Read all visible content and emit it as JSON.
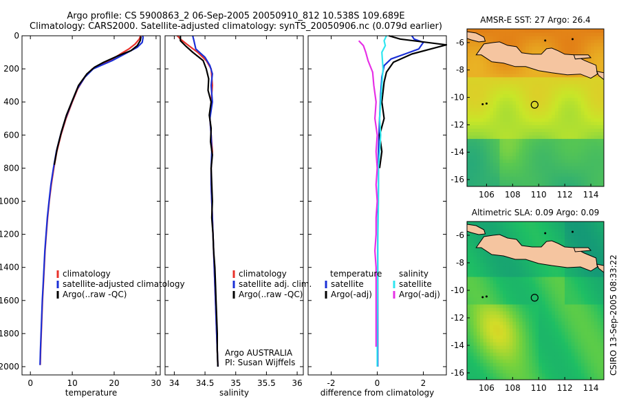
{
  "header": {
    "line1": "Argo profile: CS 5900863_2 06-Sep-2005 20050910_812 10.538S 109.689E",
    "line2": "Climatology: CARS2000. Satellite-adjusted climatology: synTS_20050906.nc (0.079d earlier)"
  },
  "side_stamp": "CSIRO 13-Sep-2005 08:33:22",
  "colors": {
    "climatology": "#e8312a",
    "satellite": "#1a2fd6",
    "argo": "#000000",
    "satellite_diff_sal": "#2fe6f0",
    "argo_diff_sal": "#e630e6",
    "land": "#f5c5a0"
  },
  "chart_data": [
    {
      "type": "line",
      "title": "",
      "xlabel": "temperature",
      "ylabel": "",
      "xlim": [
        -2,
        31
      ],
      "ylim": [
        2050,
        0
      ],
      "xticks": [
        0,
        10,
        20,
        30
      ],
      "yticks": [
        0,
        200,
        400,
        600,
        800,
        1000,
        1200,
        1400,
        1600,
        1800,
        2000
      ],
      "legend": {
        "placement": "bottom-right",
        "entries": [
          "climatology",
          "satellite-adjusted climatology",
          "Argo(..raw -QC)"
        ]
      },
      "series": [
        {
          "name": "climatology",
          "color": "#e8312a",
          "points": [
            [
              26.3,
              0
            ],
            [
              26.0,
              20
            ],
            [
              25.0,
              50
            ],
            [
              23.5,
              80
            ],
            [
              21.5,
              110
            ],
            [
              19.0,
              150
            ],
            [
              16.5,
              180
            ],
            [
              14.8,
              200
            ],
            [
              13.0,
              250
            ],
            [
              11.3,
              320
            ],
            [
              10.0,
              400
            ],
            [
              8.5,
              500
            ],
            [
              7.3,
              600
            ],
            [
              6.3,
              700
            ],
            [
              5.6,
              800
            ],
            [
              5.0,
              900
            ],
            [
              4.5,
              1000
            ],
            [
              4.1,
              1100
            ],
            [
              3.8,
              1200
            ],
            [
              3.5,
              1300
            ],
            [
              3.3,
              1400
            ],
            [
              3.1,
              1500
            ],
            [
              2.9,
              1600
            ],
            [
              2.75,
              1700
            ],
            [
              2.6,
              1800
            ],
            [
              2.45,
              1900
            ],
            [
              2.35,
              1990
            ]
          ]
        },
        {
          "name": "satellite-adjusted climatology",
          "color": "#1a2fd6",
          "points": [
            [
              26.8,
              0
            ],
            [
              26.9,
              10
            ],
            [
              26.7,
              40
            ],
            [
              25.5,
              70
            ],
            [
              22.5,
              110
            ],
            [
              19.5,
              150
            ],
            [
              16.8,
              180
            ],
            [
              15.0,
              200
            ],
            [
              13.0,
              250
            ],
            [
              11.2,
              320
            ],
            [
              9.9,
              400
            ],
            [
              8.4,
              500
            ],
            [
              7.2,
              600
            ],
            [
              6.2,
              700
            ],
            [
              5.5,
              800
            ],
            [
              4.9,
              900
            ],
            [
              4.45,
              1000
            ],
            [
              4.05,
              1100
            ],
            [
              3.75,
              1200
            ],
            [
              3.45,
              1300
            ],
            [
              3.25,
              1400
            ],
            [
              3.05,
              1500
            ],
            [
              2.85,
              1600
            ],
            [
              2.7,
              1700
            ],
            [
              2.55,
              1800
            ],
            [
              2.4,
              1900
            ],
            [
              2.3,
              1990
            ]
          ]
        },
        {
          "name": "Argo(..raw -QC)",
          "color": "#000000",
          "points": [
            [
              26.4,
              5
            ],
            [
              26.2,
              30
            ],
            [
              25.5,
              60
            ],
            [
              24.0,
              90
            ],
            [
              21.0,
              120
            ],
            [
              17.5,
              160
            ],
            [
              15.3,
              190
            ],
            [
              13.5,
              230
            ],
            [
              11.5,
              300
            ],
            [
              10.2,
              380
            ],
            [
              8.6,
              480
            ],
            [
              7.4,
              580
            ],
            [
              6.4,
              680
            ],
            [
              5.7,
              780
            ]
          ]
        }
      ]
    },
    {
      "type": "line",
      "title": "",
      "xlabel": "salinity",
      "ylabel": "",
      "xlim": [
        33.85,
        36.1
      ],
      "ylim": [
        2050,
        0
      ],
      "xticks": [
        34,
        34.5,
        35,
        35.5,
        36
      ],
      "legend": {
        "placement": "bottom-right",
        "entries": [
          "climatology",
          "satellite adj. clim.",
          "Argo(..raw -QC)"
        ]
      },
      "annotations": [
        "Argo AUSTRALIA",
        "PI: Susan Wijffels"
      ],
      "series": [
        {
          "name": "climatology",
          "color": "#e8312a",
          "points": [
            [
              34.05,
              0
            ],
            [
              34.1,
              20
            ],
            [
              34.2,
              50
            ],
            [
              34.38,
              100
            ],
            [
              34.52,
              150
            ],
            [
              34.6,
              200
            ],
            [
              34.62,
              300
            ],
            [
              34.6,
              400
            ],
            [
              34.58,
              500
            ],
            [
              34.6,
              600
            ],
            [
              34.62,
              700
            ],
            [
              34.6,
              800
            ],
            [
              34.6,
              900
            ],
            [
              34.61,
              1000
            ],
            [
              34.62,
              1100
            ],
            [
              34.63,
              1200
            ],
            [
              34.64,
              1300
            ],
            [
              34.65,
              1400
            ],
            [
              34.66,
              1500
            ],
            [
              34.67,
              1600
            ],
            [
              34.68,
              1700
            ],
            [
              34.69,
              1800
            ],
            [
              34.7,
              1900
            ],
            [
              34.71,
              2000
            ]
          ]
        },
        {
          "name": "satellite adj. clim.",
          "color": "#1a2fd6",
          "points": [
            [
              34.3,
              0
            ],
            [
              34.32,
              30
            ],
            [
              34.35,
              80
            ],
            [
              34.5,
              130
            ],
            [
              34.58,
              180
            ],
            [
              34.62,
              230
            ],
            [
              34.6,
              300
            ],
            [
              34.62,
              400
            ],
            [
              34.58,
              500
            ],
            [
              34.6,
              600
            ],
            [
              34.61,
              700
            ],
            [
              34.6,
              800
            ],
            [
              34.6,
              900
            ],
            [
              34.61,
              1000
            ],
            [
              34.62,
              1100
            ],
            [
              34.63,
              1200
            ],
            [
              34.64,
              1300
            ],
            [
              34.65,
              1400
            ],
            [
              34.66,
              1500
            ],
            [
              34.67,
              1600
            ],
            [
              34.68,
              1700
            ],
            [
              34.69,
              1800
            ],
            [
              34.7,
              1900
            ],
            [
              34.71,
              2000
            ]
          ]
        },
        {
          "name": "Argo(..raw -QC)",
          "color": "#000000",
          "points": [
            [
              34.1,
              0
            ],
            [
              34.1,
              30
            ],
            [
              34.18,
              60
            ],
            [
              34.3,
              100
            ],
            [
              34.47,
              150
            ],
            [
              34.52,
              200
            ],
            [
              34.56,
              260
            ],
            [
              34.55,
              330
            ],
            [
              34.6,
              400
            ],
            [
              34.57,
              480
            ],
            [
              34.6,
              560
            ],
            [
              34.59,
              640
            ],
            [
              34.62,
              720
            ],
            [
              34.6,
              800
            ],
            [
              34.61,
              900
            ],
            [
              34.62,
              1000
            ],
            [
              34.61,
              1100
            ],
            [
              34.63,
              1200
            ],
            [
              34.64,
              1300
            ],
            [
              34.66,
              1400
            ],
            [
              34.67,
              1500
            ],
            [
              34.68,
              1600
            ],
            [
              34.69,
              1700
            ],
            [
              34.7,
              1800
            ],
            [
              34.7,
              1900
            ],
            [
              34.71,
              2000
            ]
          ]
        }
      ]
    },
    {
      "type": "line",
      "title": "",
      "xlabel": "difference from climatology",
      "ylabel": "",
      "xlim": [
        -3,
        3
      ],
      "ylim": [
        2050,
        0
      ],
      "xticks": [
        -2,
        0,
        2
      ],
      "legend": {
        "placement": "bottom-right",
        "temperature_heading": "temperature",
        "salinity_heading": "salinity",
        "entries": [
          "satellite",
          "Argo(-adj)",
          "satellite",
          "Argo(-adj)"
        ]
      },
      "series": [
        {
          "name": "satellite",
          "group": "temperature",
          "color": "#1a2fd6",
          "points": [
            [
              1.5,
              0
            ],
            [
              1.6,
              20
            ],
            [
              2.0,
              40
            ],
            [
              1.8,
              80
            ],
            [
              1.2,
              110
            ],
            [
              0.6,
              140
            ],
            [
              0.3,
              180
            ],
            [
              0.2,
              250
            ],
            [
              0.15,
              350
            ],
            [
              0.1,
              500
            ],
            [
              0.05,
              700
            ],
            [
              0.05,
              900
            ],
            [
              0.03,
              1100
            ],
            [
              0.02,
              1300
            ],
            [
              0.02,
              1500
            ],
            [
              0.02,
              1700
            ],
            [
              0.02,
              1900
            ],
            [
              0.02,
              2000
            ]
          ]
        },
        {
          "name": "Argo(-adj)",
          "group": "temperature",
          "color": "#000000",
          "points": [
            [
              0.5,
              0
            ],
            [
              1.0,
              20
            ],
            [
              3.0,
              55
            ],
            [
              1.5,
              110
            ],
            [
              0.7,
              160
            ],
            [
              0.4,
              220
            ],
            [
              0.3,
              280
            ],
            [
              0.2,
              400
            ],
            [
              0.3,
              500
            ],
            [
              0.1,
              600
            ],
            [
              0.2,
              700
            ],
            [
              0.1,
              800
            ]
          ]
        },
        {
          "name": "satellite",
          "group": "salinity",
          "color": "#2fe6f0",
          "points": [
            [
              0.4,
              0
            ],
            [
              0.3,
              30
            ],
            [
              0.35,
              60
            ],
            [
              0.2,
              100
            ],
            [
              0.25,
              200
            ],
            [
              0.2,
              300
            ],
            [
              0.15,
              400
            ],
            [
              0.1,
              500
            ],
            [
              0.15,
              600
            ],
            [
              0.1,
              700
            ],
            [
              0.05,
              800
            ],
            [
              0.05,
              1000
            ],
            [
              0.03,
              1200
            ],
            [
              0.02,
              1400
            ],
            [
              0.01,
              1600
            ],
            [
              0.0,
              1800
            ],
            [
              0.0,
              2000
            ]
          ]
        },
        {
          "name": "Argo(-adj)",
          "group": "salinity",
          "color": "#e630e6",
          "points": [
            [
              -0.8,
              30
            ],
            [
              -0.6,
              60
            ],
            [
              -0.5,
              100
            ],
            [
              -0.4,
              150
            ],
            [
              -0.2,
              220
            ],
            [
              -0.15,
              300
            ],
            [
              -0.05,
              400
            ],
            [
              -0.1,
              500
            ],
            [
              0.0,
              600
            ],
            [
              -0.05,
              700
            ],
            [
              0.0,
              800
            ],
            [
              -0.05,
              900
            ],
            [
              0.0,
              1000
            ],
            [
              -0.05,
              1100
            ],
            [
              -0.05,
              1200
            ],
            [
              -0.1,
              1300
            ],
            [
              -0.05,
              1400
            ],
            [
              -0.05,
              1500
            ],
            [
              -0.05,
              1600
            ],
            [
              -0.05,
              1700
            ],
            [
              -0.05,
              1800
            ],
            [
              -0.05,
              1880
            ]
          ]
        }
      ]
    },
    {
      "type": "heatmap",
      "title": "AMSR-E SST: 27 Argo: 26.4",
      "xlim": [
        104.5,
        115
      ],
      "ylim": [
        -16.5,
        -5
      ],
      "xticks": [
        106,
        108,
        110,
        112,
        114
      ],
      "yticks": [
        -6,
        -8,
        -10,
        -12,
        -14,
        -16
      ],
      "marker": {
        "lon": 109.689,
        "lat": -10.538
      },
      "field": "sst"
    },
    {
      "type": "heatmap",
      "title": "Altimetric SLA: 0.09 Argo: 0.09",
      "xlim": [
        104.5,
        115
      ],
      "ylim": [
        -16.5,
        -5
      ],
      "xticks": [
        106,
        108,
        110,
        112,
        114
      ],
      "yticks": [
        -6,
        -8,
        -10,
        -12,
        -14,
        -16
      ],
      "marker": {
        "lon": 109.689,
        "lat": -10.538
      },
      "field": "sla"
    }
  ]
}
